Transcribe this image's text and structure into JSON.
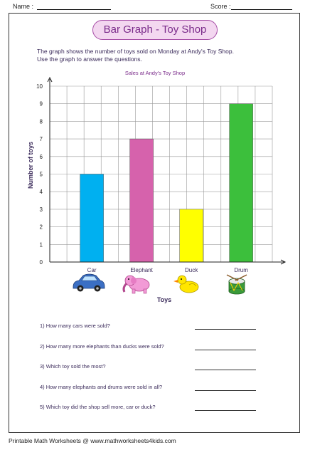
{
  "header": {
    "name_label": "Name :",
    "score_label": "Score :"
  },
  "title": "Bar Graph - Toy Shop",
  "instructions": [
    "The graph shows the number of toys sold on Monday at Andy's Toy Shop.",
    "Use the graph to answer the questions."
  ],
  "icons": [
    "car-icon",
    "elephant-icon",
    "duck-icon",
    "drum-icon"
  ],
  "chart_data": {
    "type": "bar",
    "title": "Sales at Andy's Toy Shop",
    "xlabel": "Toys",
    "ylabel": "Number of toys",
    "categories": [
      "Car",
      "Elephant",
      "Duck",
      "Drum"
    ],
    "values": [
      5,
      7,
      3,
      9
    ],
    "colors": [
      "#00b0f0",
      "#d662ac",
      "#ffff00",
      "#3cbf3c"
    ],
    "ylim": [
      0,
      10
    ],
    "yticks": [
      "0",
      "1",
      "2",
      "3",
      "4",
      "5",
      "6",
      "7",
      "8",
      "9",
      "10"
    ],
    "grid": true
  },
  "questions": [
    "1)  How many cars were sold?",
    "2)  How many more elephants than ducks were sold?",
    "3)  Which toy sold the most?",
    "4)  How many elephants and drums were sold in all?",
    "5)  Which toy did the shop sell more, car or duck?"
  ],
  "footer": "Printable Math Worksheets @ www.mathworksheets4kids.com"
}
